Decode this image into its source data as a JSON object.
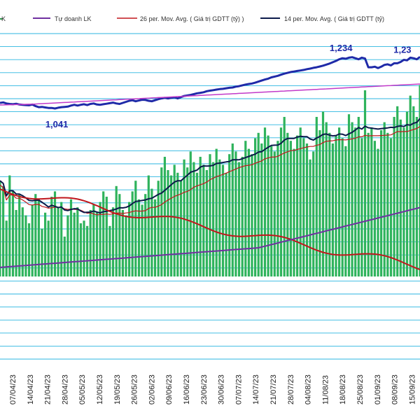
{
  "chart_data": {
    "type": "line",
    "legend": [
      {
        "label": "K",
        "color": "#2e9e4f"
      },
      {
        "label": "Tự doanh LK",
        "color": "#7030a0"
      },
      {
        "label": "26 per. Mov. Avg. ( Giá trị GDTT (tỷ) )",
        "color": "#c0161c"
      },
      {
        "label": "14 per. Mov. Avg. ( Giá trị GDTT (tỷ)",
        "color": "#0c1a4a"
      }
    ],
    "x_labels": [
      "07/04/23",
      "14/04/23",
      "21/04/23",
      "28/04/23",
      "05/05/23",
      "12/05/23",
      "19/05/23",
      "26/05/23",
      "02/06/23",
      "09/06/23",
      "16/06/23",
      "23/06/23",
      "30/06/23",
      "07/07/23",
      "14/07/23",
      "21/07/23",
      "28/07/23",
      "04/08/23",
      "11/08/23",
      "18/08/23",
      "25/08/23",
      "01/09/23",
      "08/09/23",
      "15/09/23"
    ],
    "annotations": [
      {
        "text": "1,041",
        "index": 18
      },
      {
        "text": "1,234",
        "index": 106
      },
      {
        "text": "1,23",
        "index": 125
      }
    ],
    "series": {
      "index_line": [
        1062,
        1064,
        1060,
        1058,
        1057,
        1059,
        1056,
        1055,
        1054,
        1053,
        1056,
        1050,
        1046,
        1047,
        1045,
        1043,
        1043,
        1041,
        1044,
        1046,
        1047,
        1048,
        1052,
        1055,
        1052,
        1055,
        1057,
        1054,
        1058,
        1060,
        1056,
        1055,
        1057,
        1059,
        1061,
        1063,
        1060,
        1058,
        1062,
        1066,
        1070,
        1072,
        1068,
        1071,
        1074,
        1073,
        1070,
        1068,
        1072,
        1076,
        1079,
        1081,
        1079,
        1081,
        1083,
        1079,
        1084,
        1088,
        1090,
        1092,
        1095,
        1098,
        1100,
        1102,
        1106,
        1108,
        1110,
        1112,
        1114,
        1115,
        1117,
        1119,
        1120,
        1123,
        1125,
        1128,
        1131,
        1133,
        1135,
        1138,
        1142,
        1146,
        1150,
        1153,
        1158,
        1161,
        1164,
        1168,
        1172,
        1175,
        1178,
        1180,
        1182,
        1184,
        1186,
        1189,
        1191,
        1194,
        1196,
        1199,
        1202,
        1206,
        1210,
        1215,
        1220,
        1226,
        1230,
        1228,
        1232,
        1234,
        1230,
        1226,
        1232,
        1229,
        1196,
        1196,
        1198,
        1193,
        1198,
        1205,
        1207,
        1203,
        1211,
        1211,
        1216,
        1224,
        1222,
        1232,
        1230,
        1226,
        1235
      ],
      "upward_trend": [
        1092,
        1093,
        1094,
        1095,
        1096,
        1097,
        1098,
        1099,
        1100,
        1101,
        1102,
        1104,
        1106,
        1108,
        1110,
        1112,
        1114,
        1116,
        1118,
        1120,
        1122,
        1124,
        1126,
        1128,
        1130,
        1132,
        1134,
        1136,
        1138,
        1140,
        1142,
        1144,
        1146,
        1148,
        1150,
        1152,
        1154,
        1156,
        1158,
        1160,
        1162,
        1164,
        1166,
        1168,
        1170,
        1172,
        1174,
        1176,
        1178,
        1180,
        1182,
        1184,
        1186,
        1188,
        1190,
        1192,
        1194,
        1196,
        1198,
        1200,
        1202,
        1204,
        1206,
        1208,
        1210,
        1212,
        1214,
        1216,
        1218,
        1220,
        1222,
        1224,
        1226,
        1228,
        1230,
        1232,
        1234,
        1236,
        1238,
        1240,
        1242,
        1244,
        1246,
        1248,
        1250,
        1252,
        1254,
        1256,
        1258,
        1260,
        1262,
        1264,
        1266,
        1268,
        1270,
        1272,
        1274,
        1276,
        1278,
        1280,
        1282,
        1284,
        1286,
        1288,
        1290,
        1292,
        1294,
        1296,
        1298,
        1300,
        1302,
        1304,
        1306,
        1308,
        1310,
        1312,
        1314,
        1316,
        1318,
        1320,
        1322,
        1324,
        1326,
        1328,
        1330,
        1332,
        1334,
        1336,
        1338,
        1340,
        1342
      ],
      "bars_gdtt": [
        360,
        340,
        210,
        380,
        320,
        250,
        310,
        260,
        230,
        200,
        270,
        310,
        290,
        180,
        240,
        210,
        300,
        320,
        260,
        280,
        150,
        230,
        290,
        240,
        260,
        200,
        210,
        190,
        250,
        270,
        240,
        280,
        320,
        300,
        190,
        260,
        340,
        310,
        250,
        230,
        280,
        320,
        360,
        290,
        270,
        310,
        380,
        330,
        290,
        360,
        410,
        450,
        400,
        380,
        420,
        390,
        360,
        440,
        410,
        470,
        430,
        390,
        450,
        420,
        400,
        460,
        430,
        480,
        440,
        420,
        390,
        460,
        500,
        470,
        430,
        450,
        510,
        480,
        460,
        520,
        540,
        500,
        560,
        530,
        490,
        470,
        510,
        560,
        600,
        540,
        510,
        480,
        530,
        560,
        520,
        500,
        440,
        470,
        600,
        550,
        620,
        580,
        540,
        500,
        530,
        560,
        520,
        490,
        610,
        580,
        560,
        600,
        520,
        700,
        540,
        560,
        510,
        480,
        550,
        580,
        540,
        520,
        600,
        640,
        590,
        560,
        620,
        680,
        640,
        600,
        720
      ]
    }
  }
}
